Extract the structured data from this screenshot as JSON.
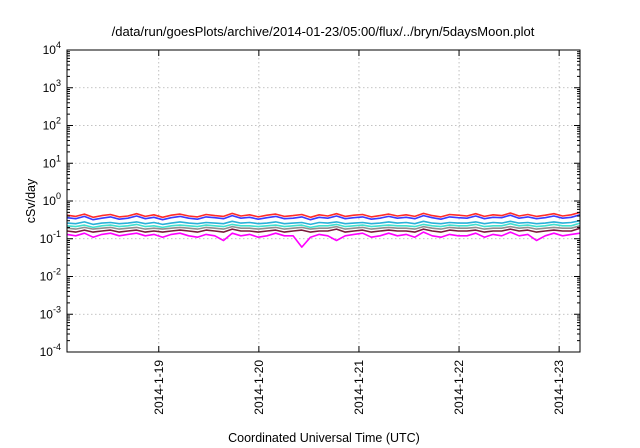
{
  "chart_data": {
    "type": "line",
    "title": "/data/run/goesPlots/archive/2014-01-23/05:00/flux/../bryn/5daysMoon.plot",
    "xlabel": "Coordinated Universal Time (UTC)",
    "ylabel": "cSv/day",
    "y_scale": "log",
    "ylim": [
      0.0001,
      10000
    ],
    "y_ticks": [
      {
        "base": "10",
        "exp": "4",
        "value": 10000
      },
      {
        "base": "10",
        "exp": "3",
        "value": 1000
      },
      {
        "base": "10",
        "exp": "2",
        "value": 100
      },
      {
        "base": "10",
        "exp": "1",
        "value": 10
      },
      {
        "base": "10",
        "exp": "0",
        "value": 1
      },
      {
        "base": "10",
        "exp": "-1",
        "value": 0.1
      },
      {
        "base": "10",
        "exp": "-2",
        "value": 0.01
      },
      {
        "base": "10",
        "exp": "-3",
        "value": 0.001
      },
      {
        "base": "10",
        "exp": "-4",
        "value": 0.0001
      }
    ],
    "x_range": [
      "2014-01-18 02:00",
      "2014-01-23 05:00"
    ],
    "x_ticks": [
      "2014-1-19",
      "2014-1-20",
      "2014-1-21",
      "2014-1-22",
      "2014-1-23"
    ],
    "grid": true,
    "series": [
      {
        "color": "#ff2a2a",
        "values": [
          0.42,
          0.39,
          0.45,
          0.37,
          0.41,
          0.44,
          0.38,
          0.4,
          0.46,
          0.39,
          0.43,
          0.37,
          0.42,
          0.45,
          0.4,
          0.38,
          0.44,
          0.41,
          0.39,
          0.47,
          0.4,
          0.43,
          0.38,
          0.42,
          0.45,
          0.39,
          0.41,
          0.44,
          0.37,
          0.43,
          0.4,
          0.46,
          0.39,
          0.42,
          0.44,
          0.38,
          0.41,
          0.45,
          0.4,
          0.43,
          0.39,
          0.47,
          0.41,
          0.38,
          0.44,
          0.42,
          0.4,
          0.46,
          0.39,
          0.43,
          0.41,
          0.48,
          0.4,
          0.44,
          0.39,
          0.42,
          0.46,
          0.4,
          0.43,
          0.5
        ]
      },
      {
        "color": "#3a3aff",
        "values": [
          0.36,
          0.34,
          0.39,
          0.32,
          0.35,
          0.38,
          0.33,
          0.35,
          0.4,
          0.34,
          0.37,
          0.32,
          0.36,
          0.39,
          0.35,
          0.33,
          0.38,
          0.36,
          0.34,
          0.41,
          0.35,
          0.37,
          0.33,
          0.36,
          0.39,
          0.34,
          0.35,
          0.38,
          0.32,
          0.37,
          0.35,
          0.4,
          0.34,
          0.36,
          0.38,
          0.33,
          0.35,
          0.39,
          0.35,
          0.37,
          0.34,
          0.41,
          0.36,
          0.33,
          0.38,
          0.36,
          0.35,
          0.4,
          0.34,
          0.37,
          0.36,
          0.42,
          0.35,
          0.38,
          0.34,
          0.36,
          0.4,
          0.35,
          0.37,
          0.43
        ]
      },
      {
        "color": "#2ab0d8",
        "values": [
          0.26,
          0.25,
          0.28,
          0.24,
          0.26,
          0.27,
          0.25,
          0.26,
          0.28,
          0.25,
          0.27,
          0.24,
          0.26,
          0.28,
          0.26,
          0.25,
          0.27,
          0.26,
          0.25,
          0.29,
          0.26,
          0.27,
          0.25,
          0.26,
          0.28,
          0.25,
          0.26,
          0.27,
          0.24,
          0.27,
          0.26,
          0.28,
          0.25,
          0.26,
          0.27,
          0.25,
          0.26,
          0.28,
          0.26,
          0.27,
          0.25,
          0.29,
          0.26,
          0.25,
          0.27,
          0.26,
          0.26,
          0.28,
          0.25,
          0.27,
          0.26,
          0.29,
          0.26,
          0.27,
          0.25,
          0.26,
          0.28,
          0.26,
          0.27,
          0.3
        ]
      },
      {
        "color": "#40e0d0",
        "values": [
          0.22,
          0.21,
          0.23,
          0.2,
          0.22,
          0.23,
          0.21,
          0.22,
          0.24,
          0.21,
          0.22,
          0.2,
          0.22,
          0.23,
          0.22,
          0.21,
          0.23,
          0.22,
          0.21,
          0.24,
          0.22,
          0.22,
          0.21,
          0.22,
          0.23,
          0.21,
          0.22,
          0.23,
          0.2,
          0.22,
          0.22,
          0.24,
          0.21,
          0.22,
          0.23,
          0.21,
          0.22,
          0.23,
          0.22,
          0.22,
          0.21,
          0.24,
          0.22,
          0.21,
          0.23,
          0.22,
          0.22,
          0.24,
          0.21,
          0.22,
          0.22,
          0.25,
          0.22,
          0.23,
          0.21,
          0.22,
          0.24,
          0.22,
          0.22,
          0.26
        ]
      },
      {
        "color": "#909090",
        "values": [
          0.19,
          0.18,
          0.2,
          0.18,
          0.19,
          0.2,
          0.18,
          0.19,
          0.2,
          0.18,
          0.19,
          0.18,
          0.19,
          0.2,
          0.19,
          0.18,
          0.2,
          0.19,
          0.18,
          0.21,
          0.19,
          0.19,
          0.18,
          0.19,
          0.2,
          0.18,
          0.19,
          0.2,
          0.18,
          0.19,
          0.19,
          0.21,
          0.18,
          0.19,
          0.2,
          0.18,
          0.19,
          0.2,
          0.19,
          0.19,
          0.18,
          0.21,
          0.19,
          0.18,
          0.2,
          0.19,
          0.19,
          0.2,
          0.18,
          0.19,
          0.19,
          0.21,
          0.19,
          0.2,
          0.18,
          0.19,
          0.2,
          0.19,
          0.19,
          0.22
        ]
      },
      {
        "color": "#7a1a3a",
        "values": [
          0.16,
          0.15,
          0.17,
          0.15,
          0.16,
          0.17,
          0.15,
          0.16,
          0.17,
          0.15,
          0.16,
          0.15,
          0.16,
          0.17,
          0.16,
          0.15,
          0.17,
          0.16,
          0.15,
          0.18,
          0.16,
          0.16,
          0.15,
          0.16,
          0.17,
          0.15,
          0.16,
          0.17,
          0.15,
          0.16,
          0.16,
          0.18,
          0.15,
          0.16,
          0.17,
          0.15,
          0.16,
          0.17,
          0.16,
          0.16,
          0.15,
          0.18,
          0.16,
          0.15,
          0.17,
          0.16,
          0.16,
          0.17,
          0.15,
          0.16,
          0.16,
          0.18,
          0.16,
          0.17,
          0.15,
          0.16,
          0.17,
          0.16,
          0.16,
          0.19
        ]
      },
      {
        "color": "#ff00ff",
        "values": [
          0.13,
          0.12,
          0.14,
          0.11,
          0.13,
          0.14,
          0.12,
          0.13,
          0.14,
          0.12,
          0.13,
          0.11,
          0.13,
          0.14,
          0.12,
          0.11,
          0.13,
          0.12,
          0.09,
          0.14,
          0.12,
          0.13,
          0.11,
          0.12,
          0.14,
          0.12,
          0.12,
          0.06,
          0.11,
          0.13,
          0.12,
          0.09,
          0.12,
          0.13,
          0.14,
          0.11,
          0.12,
          0.14,
          0.12,
          0.13,
          0.11,
          0.15,
          0.12,
          0.11,
          0.13,
          0.12,
          0.12,
          0.14,
          0.11,
          0.13,
          0.12,
          0.15,
          0.12,
          0.13,
          0.09,
          0.12,
          0.14,
          0.12,
          0.13,
          0.14
        ]
      }
    ]
  }
}
